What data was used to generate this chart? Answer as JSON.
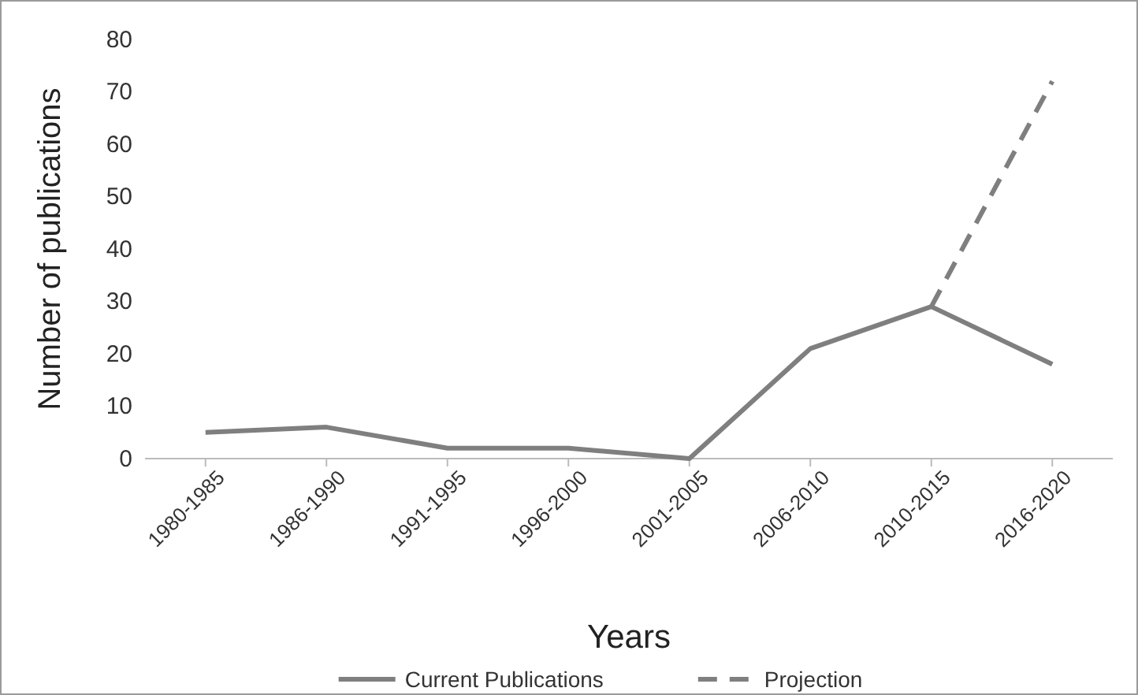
{
  "chart_data": {
    "type": "line",
    "xlabel": "Years",
    "ylabel": "Number of publications",
    "categories": [
      "1980-1985",
      "1986-1990",
      "1991-1995",
      "1996-2000",
      "2001-2005",
      "2006-2010",
      "2010-2015",
      "2016-2020"
    ],
    "series": [
      {
        "name": "Current Publications",
        "color": "#7f7f7f",
        "values": [
          5,
          6,
          2,
          2,
          0,
          21,
          29,
          18
        ],
        "line_style": "solid"
      },
      {
        "name": "Projection",
        "color": "#7f7f7f",
        "values": [
          null,
          null,
          null,
          null,
          null,
          null,
          29,
          72
        ],
        "line_style": "dashed"
      }
    ],
    "ylim": [
      0,
      80
    ],
    "yticks": [
      0,
      10,
      20,
      30,
      40,
      50,
      60,
      70,
      80
    ],
    "grid": false,
    "legend": "bottom",
    "marker": "none"
  }
}
